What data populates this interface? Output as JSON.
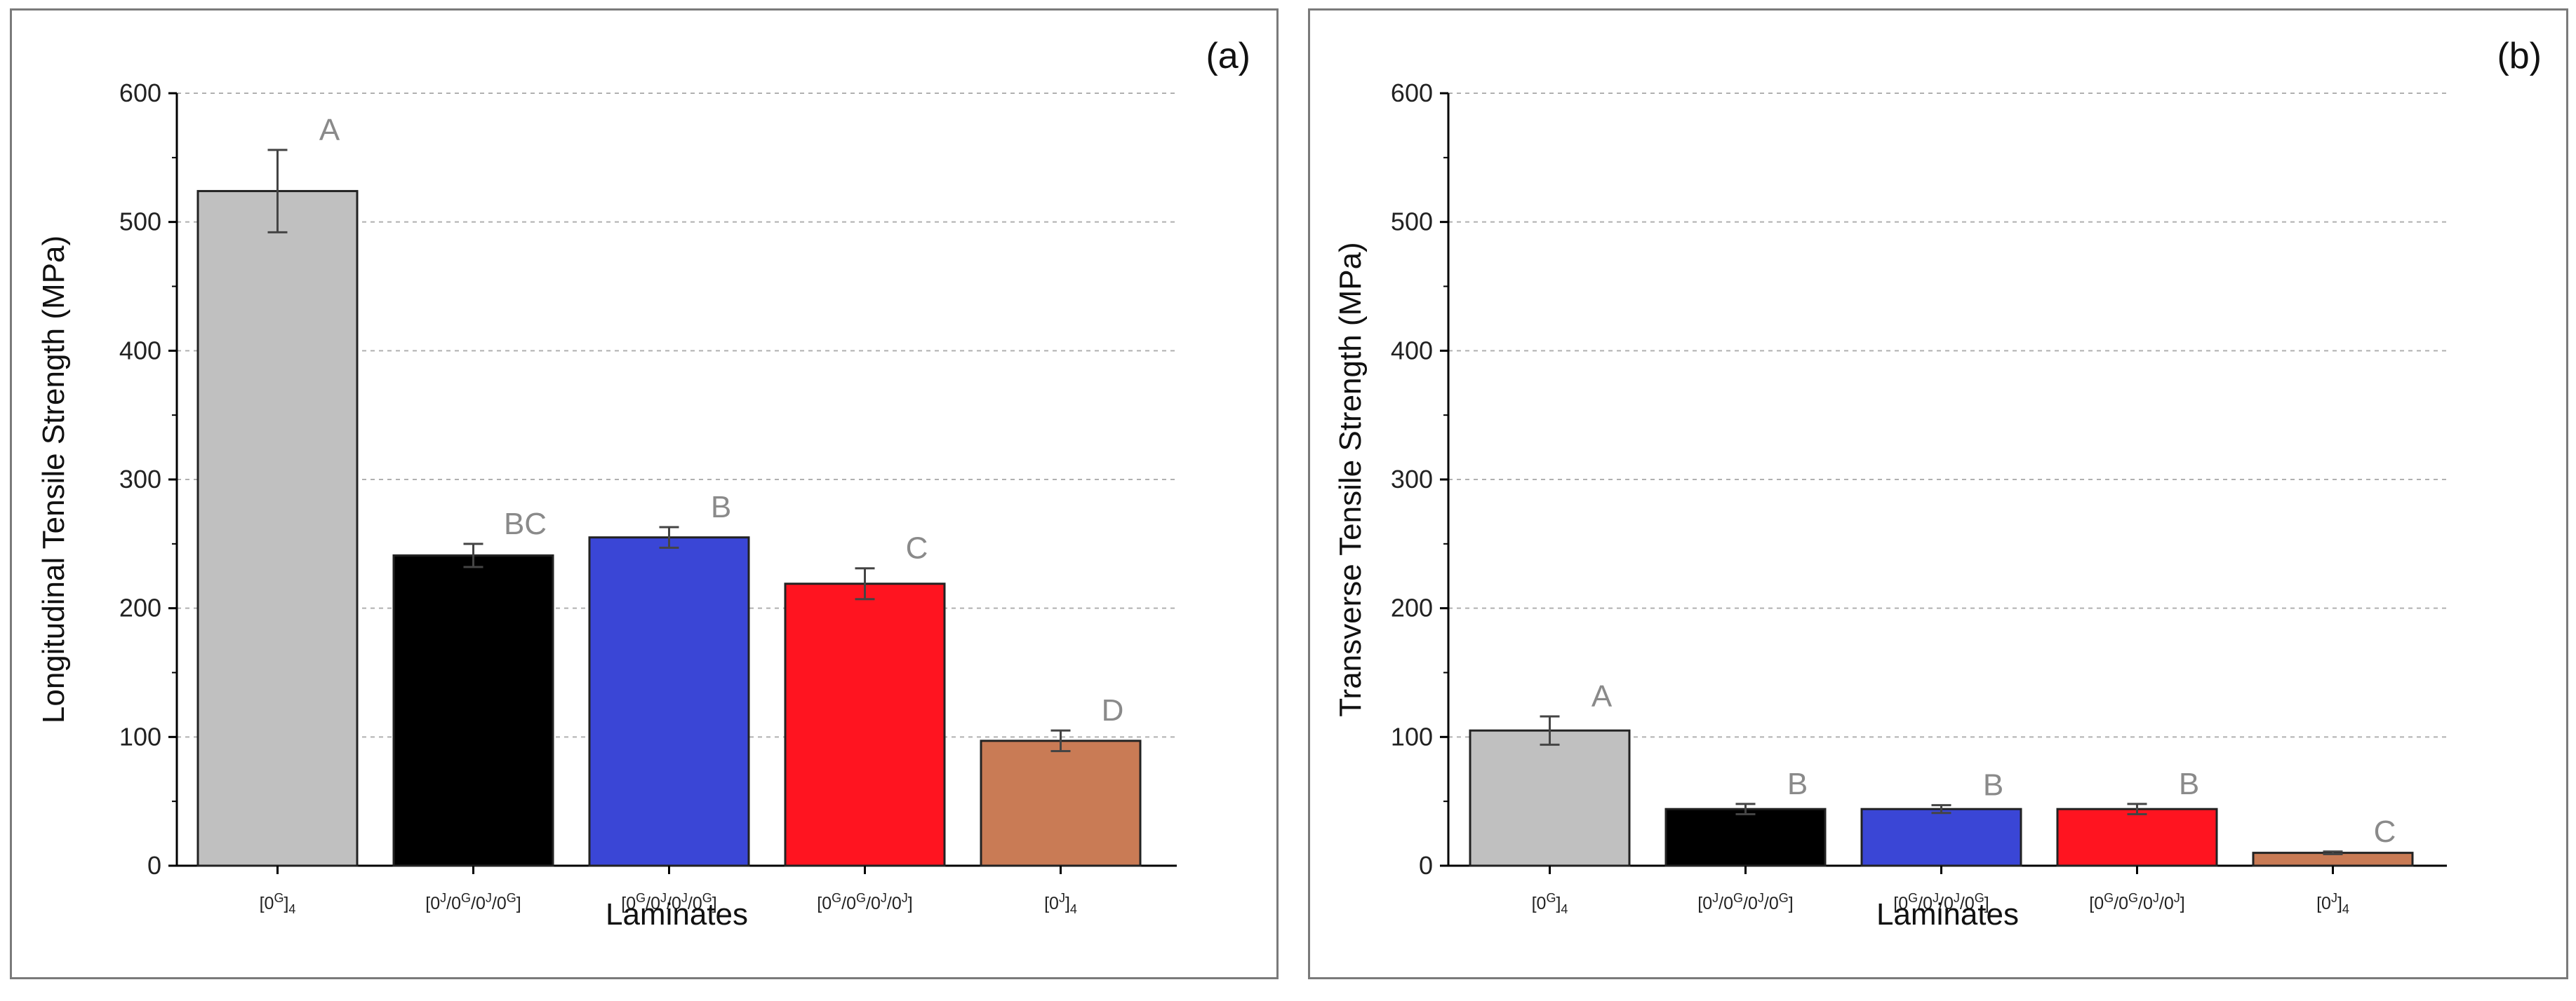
{
  "chart_data": [
    {
      "type": "bar",
      "panel_label": "(a)",
      "title": "",
      "xlabel": "Laminates",
      "ylabel": "Longitudinal Tensile Strength (MPa)",
      "ylim": [
        0,
        600
      ],
      "yticks": [
        "0",
        "100",
        "200",
        "300",
        "400",
        "500",
        "600"
      ],
      "grid": "horizontal dashed",
      "categories": [
        {
          "base": "[0",
          "sup": "G",
          "mid": "]",
          "sub": "4"
        },
        {
          "base": "[0",
          "sup": "J",
          "mid": "/0",
          "sup2": "G",
          "mid2": "/0",
          "sup3": "J",
          "mid3": "/0",
          "sup4": "G",
          "mid4": "]"
        },
        {
          "base": "[0",
          "sup": "G",
          "mid": "/0",
          "sup2": "J",
          "mid2": "/0",
          "sup3": "J",
          "mid3": "/0",
          "sup4": "G",
          "mid4": "]"
        },
        {
          "base": "[0",
          "sup": "G",
          "mid": "/0",
          "sup2": "G",
          "mid2": "/0",
          "sup3": "J",
          "mid3": "/0",
          "sup4": "J",
          "mid4": "]"
        },
        {
          "base": "[0",
          "sup": "J",
          "mid": "]",
          "sub": "4"
        }
      ],
      "values": [
        524,
        241,
        255,
        219,
        97
      ],
      "errors": [
        32,
        9,
        8,
        12,
        8
      ],
      "group_letters": [
        "A",
        "BC",
        "B",
        "C",
        "D"
      ],
      "colors": [
        "#c0c0c0",
        "#000000",
        "#3a46d6",
        "#ff1420",
        "#c97b55"
      ]
    },
    {
      "type": "bar",
      "panel_label": "(b)",
      "title": "",
      "xlabel": "Laminates",
      "ylabel": "Transverse Tensile Strength (MPa)",
      "ylim": [
        0,
        600
      ],
      "yticks": [
        "0",
        "100",
        "200",
        "300",
        "400",
        "500",
        "600"
      ],
      "grid": "horizontal dashed",
      "categories": [
        {
          "base": "[0",
          "sup": "G",
          "mid": "]",
          "sub": "4"
        },
        {
          "base": "[0",
          "sup": "J",
          "mid": "/0",
          "sup2": "G",
          "mid2": "/0",
          "sup3": "J",
          "mid3": "/0",
          "sup4": "G",
          "mid4": "]"
        },
        {
          "base": "[0",
          "sup": "G",
          "mid": "/0",
          "sup2": "J",
          "mid2": "/0",
          "sup3": "J",
          "mid3": "/0",
          "sup4": "G",
          "mid4": "]"
        },
        {
          "base": "[0",
          "sup": "G",
          "mid": "/0",
          "sup2": "G",
          "mid2": "/0",
          "sup3": "J",
          "mid3": "/0",
          "sup4": "J",
          "mid4": "]"
        },
        {
          "base": "[0",
          "sup": "J",
          "mid": "]",
          "sub": "4"
        }
      ],
      "values": [
        105,
        44,
        44,
        44,
        10
      ],
      "errors": [
        11,
        4,
        3,
        4,
        1
      ],
      "group_letters": [
        "A",
        "B",
        "B",
        "B",
        "C"
      ],
      "colors": [
        "#c0c0c0",
        "#000000",
        "#3a46d6",
        "#ff1420",
        "#c97b55"
      ]
    }
  ]
}
